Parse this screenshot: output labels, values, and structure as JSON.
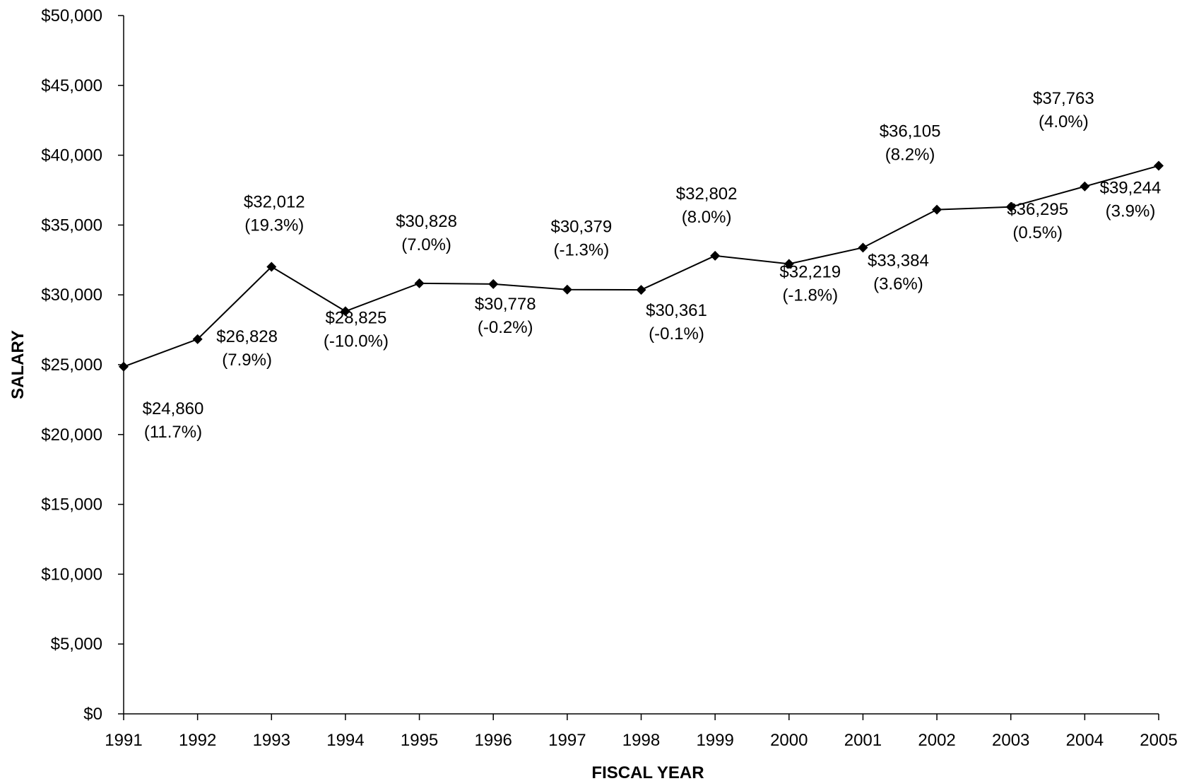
{
  "chart_data": {
    "type": "line",
    "title": "",
    "xlabel": "FISCAL YEAR",
    "ylabel": "SALARY",
    "ylim": [
      0,
      50000
    ],
    "y_ticks": [
      "$0",
      "$5,000",
      "$10,000",
      "$15,000",
      "$20,000",
      "$25,000",
      "$30,000",
      "$35,000",
      "$40,000",
      "$45,000",
      "$50,000"
    ],
    "categories": [
      "1991",
      "1992",
      "1993",
      "1994",
      "1995",
      "1996",
      "1997",
      "1998",
      "1999",
      "2000",
      "2001",
      "2002",
      "2003",
      "2004",
      "2005"
    ],
    "grid": false,
    "legend": "none",
    "series": [
      {
        "values": [
          24860,
          26828,
          32012,
          28825,
          30828,
          30778,
          30379,
          30361,
          32802,
          32219,
          33384,
          36105,
          36295,
          37763,
          39244
        ],
        "value_labels": [
          "$24,860",
          "$26,828",
          "$32,012",
          "$28,825",
          "$30,828",
          "$30,778",
          "$30,379",
          "$30,361",
          "$32,802",
          "$32,219",
          "$33,384",
          "$36,105",
          "$36,295",
          "$37,763",
          "$39,244"
        ],
        "change_labels": [
          "(11.7%)",
          "(7.9%)",
          "(19.3%)",
          "(-10.0%)",
          "(7.0%)",
          "(-0.2%)",
          "(-1.3%)",
          "(-0.1%)",
          "(8.0%)",
          "(-1.8%)",
          "(3.6%)",
          "(8.2%)",
          "(0.5%)",
          "(4.0%)",
          "(3.9%)"
        ],
        "color": "#000000",
        "marker": "diamond"
      }
    ]
  }
}
